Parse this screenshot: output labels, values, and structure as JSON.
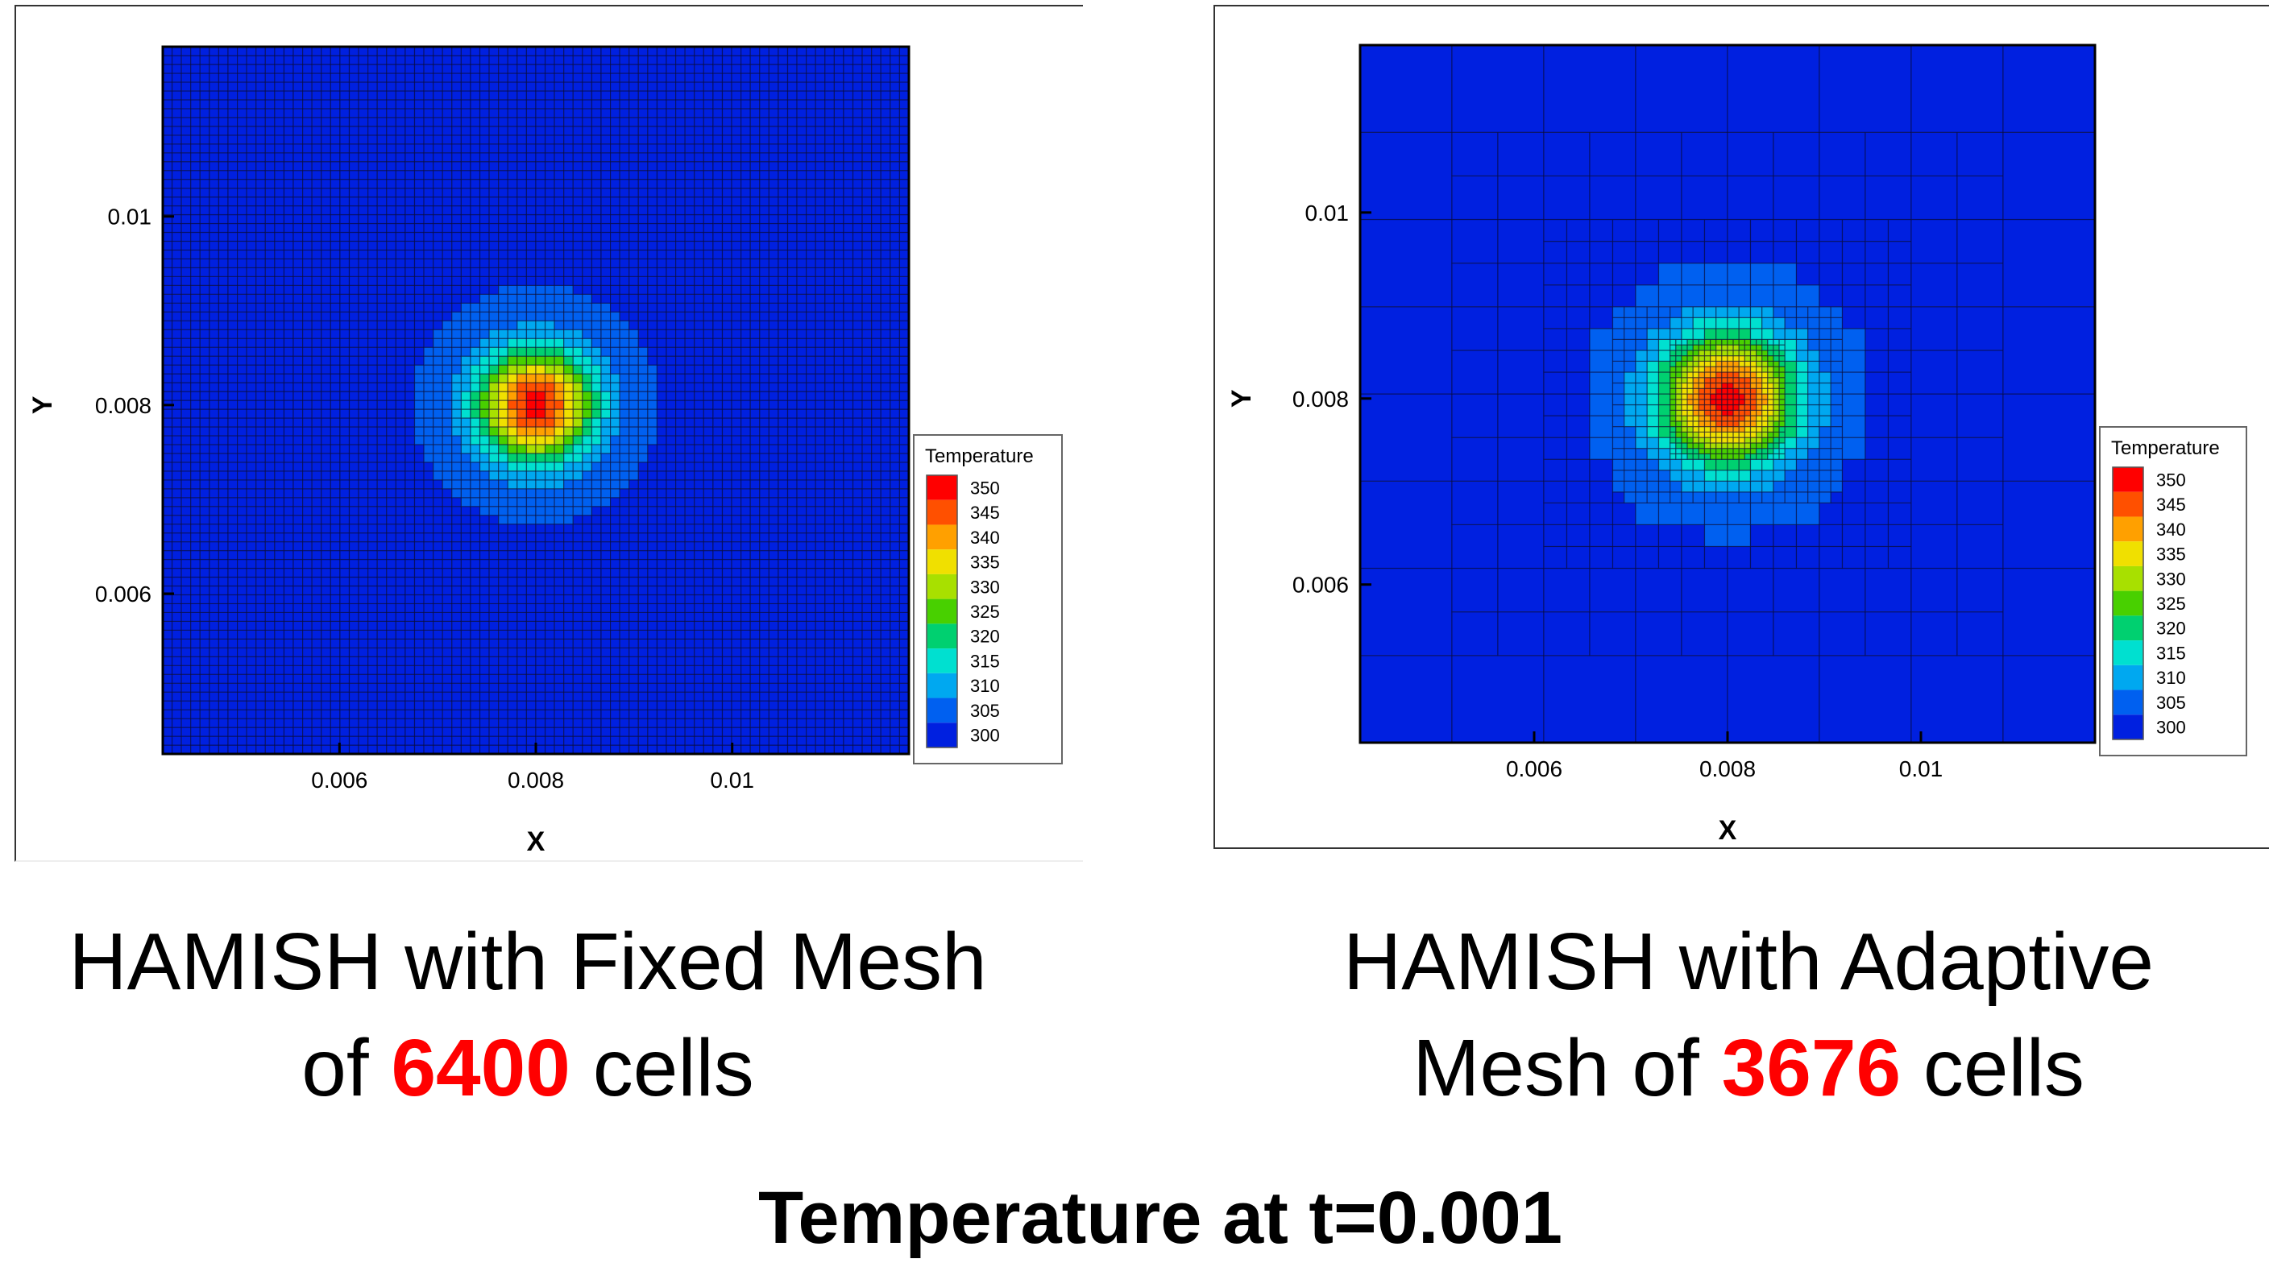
{
  "chart_data": [
    {
      "type": "heatmap",
      "mesh": "fixed",
      "xlabel": "X",
      "ylabel": "Y",
      "xlim": [
        0.0042,
        0.0118
      ],
      "ylim": [
        0.0043,
        0.0118
      ],
      "xticks": [
        "0.006",
        "0.008",
        "0.01"
      ],
      "xtick_values": [
        0.006,
        0.008,
        0.01
      ],
      "yticks": [
        "0.01",
        "0.008",
        "0.006"
      ],
      "ytick_values": [
        0.01,
        0.008,
        0.006
      ],
      "grid_cells": 80,
      "hotspot": {
        "x": 0.008,
        "y": 0.008,
        "peak": 350,
        "base": 302,
        "sigma": 0.00042
      },
      "colorbar": {
        "title": "Temperature",
        "levels": [
          "350",
          "345",
          "340",
          "335",
          "330",
          "325",
          "320",
          "315",
          "310",
          "305",
          "300"
        ],
        "colors": [
          "#ff0000",
          "#ff5000",
          "#ffa000",
          "#f0e000",
          "#a8e000",
          "#48d000",
          "#00d070",
          "#00e0d0",
          "#00a8f0",
          "#0060f0",
          "#0020e0"
        ]
      }
    },
    {
      "type": "heatmap",
      "mesh": "adaptive",
      "xlabel": "X",
      "ylabel": "Y",
      "xlim": [
        0.0042,
        0.0118
      ],
      "ylim": [
        0.0043,
        0.0118
      ],
      "xticks": [
        "0.006",
        "0.008",
        "0.01"
      ],
      "xtick_values": [
        0.006,
        0.008,
        0.01
      ],
      "yticks": [
        "0.01",
        "0.008",
        "0.006"
      ],
      "ytick_values": [
        0.01,
        0.008,
        0.006
      ],
      "hotspot": {
        "x": 0.008,
        "y": 0.008,
        "peak": 350,
        "base": 302,
        "sigma": 0.0005
      },
      "colorbar": {
        "title": "Temperature",
        "levels": [
          "350",
          "345",
          "340",
          "335",
          "330",
          "325",
          "320",
          "315",
          "310",
          "305",
          "300"
        ],
        "colors": [
          "#ff0000",
          "#ff5000",
          "#ffa000",
          "#f0e000",
          "#a8e000",
          "#48d000",
          "#00d070",
          "#00e0d0",
          "#00a8f0",
          "#0060f0",
          "#0020e0"
        ]
      }
    }
  ],
  "captions": {
    "left": {
      "line1": "HAMISH with Fixed Mesh",
      "line2_pre": "of",
      "highlight": "6400",
      "line2_post": "cells"
    },
    "right": {
      "line1": "HAMISH with Adaptive",
      "line2_pre": "Mesh of",
      "highlight": "3676",
      "line2_post": "cells"
    }
  },
  "footer": "Temperature at t=0.001",
  "colors": {
    "highlight": "#ff0000",
    "field_base": "#0b2fe6"
  }
}
